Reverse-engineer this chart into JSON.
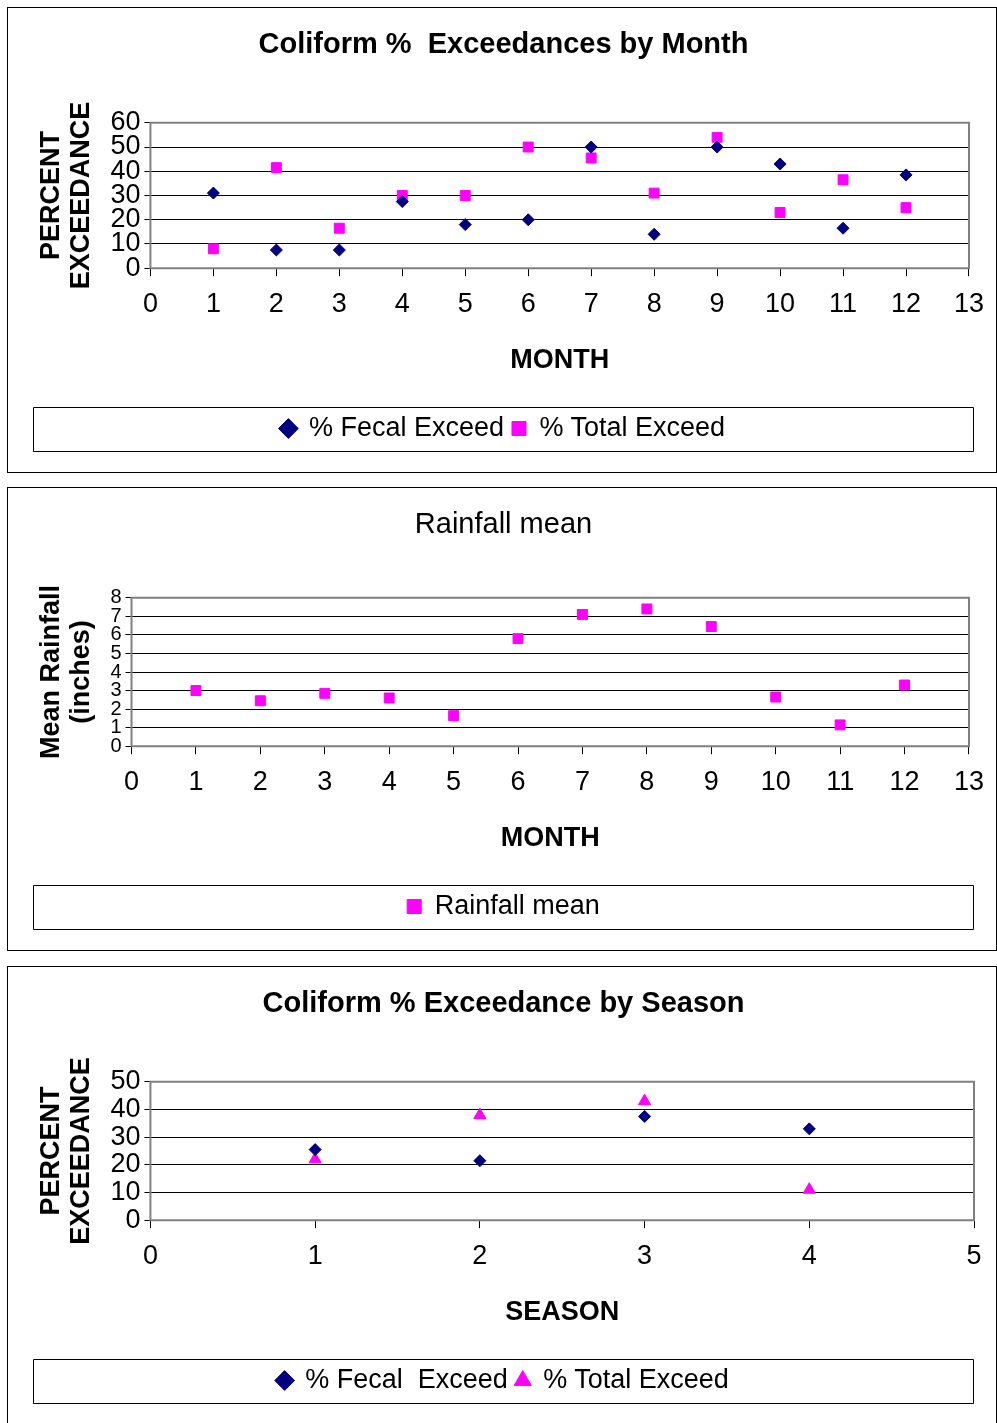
{
  "chart_data": [
    {
      "type": "scatter",
      "title": "Coliform %  Exceedances by Month",
      "xlabel": "MONTH",
      "ylabel": "PERCENT EXCEEDANCE",
      "x": [
        1,
        2,
        3,
        4,
        5,
        6,
        7,
        8,
        9,
        10,
        11,
        12
      ],
      "xlim": [
        0,
        13
      ],
      "xticks": [
        0,
        1,
        2,
        3,
        4,
        5,
        6,
        7,
        8,
        9,
        10,
        11,
        12,
        13
      ],
      "ylim": [
        0,
        60
      ],
      "yticks": [
        0,
        10,
        20,
        30,
        40,
        50,
        60
      ],
      "grid": "y",
      "legend": "bottom",
      "series": [
        {
          "name": "% Fecal Exceed",
          "color": "#000080",
          "marker": "diamond",
          "values": [
            31,
            7.5,
            7.5,
            27.5,
            18,
            20,
            50,
            14,
            50,
            43,
            16.5,
            38.5
          ]
        },
        {
          "name": "% Total Exceed",
          "color": "#ff00ff",
          "marker": "square",
          "values": [
            8,
            41.5,
            16.5,
            30,
            30,
            50,
            45.5,
            31,
            54,
            23,
            36.5,
            25
          ]
        }
      ]
    },
    {
      "type": "scatter",
      "title": "Rainfall mean",
      "xlabel": "MONTH",
      "ylabel": "Mean Rainfall (inches)",
      "x": [
        1,
        2,
        3,
        4,
        5,
        6,
        7,
        8,
        9,
        10,
        11,
        12
      ],
      "xlim": [
        0,
        13
      ],
      "xticks": [
        0,
        1,
        2,
        3,
        4,
        5,
        6,
        7,
        8,
        9,
        10,
        11,
        12,
        13
      ],
      "ylim": [
        0,
        8
      ],
      "yticks": [
        0,
        1,
        2,
        3,
        4,
        5,
        6,
        7,
        8
      ],
      "grid": "y",
      "legend": "bottom",
      "series": [
        {
          "name": "Rainfall mean",
          "color": "#ff00ff",
          "marker": "square",
          "values": [
            3,
            2.45,
            2.85,
            2.6,
            1.65,
            5.8,
            7.1,
            7.4,
            6.45,
            2.65,
            1.15,
            3.3
          ]
        }
      ]
    },
    {
      "type": "scatter",
      "title": "Coliform % Exceedance by Season",
      "xlabel": "SEASON",
      "ylabel": "PERCENT EXCEEDANCE",
      "x": [
        1,
        2,
        3,
        4
      ],
      "xlim": [
        0,
        5
      ],
      "xticks": [
        0,
        1,
        2,
        3,
        4,
        5
      ],
      "ylim": [
        0,
        50
      ],
      "yticks": [
        0,
        10,
        20,
        30,
        40,
        50
      ],
      "grid": "y",
      "legend": "bottom",
      "series": [
        {
          "name": "% Fecal  Exceed",
          "color": "#000080",
          "marker": "diamond",
          "values": [
            25.5,
            21.5,
            37.5,
            33
          ]
        },
        {
          "name": "% Total Exceed",
          "color": "#ff00ff",
          "marker": "triangle",
          "values": [
            22,
            38,
            43,
            11
          ]
        }
      ]
    }
  ]
}
